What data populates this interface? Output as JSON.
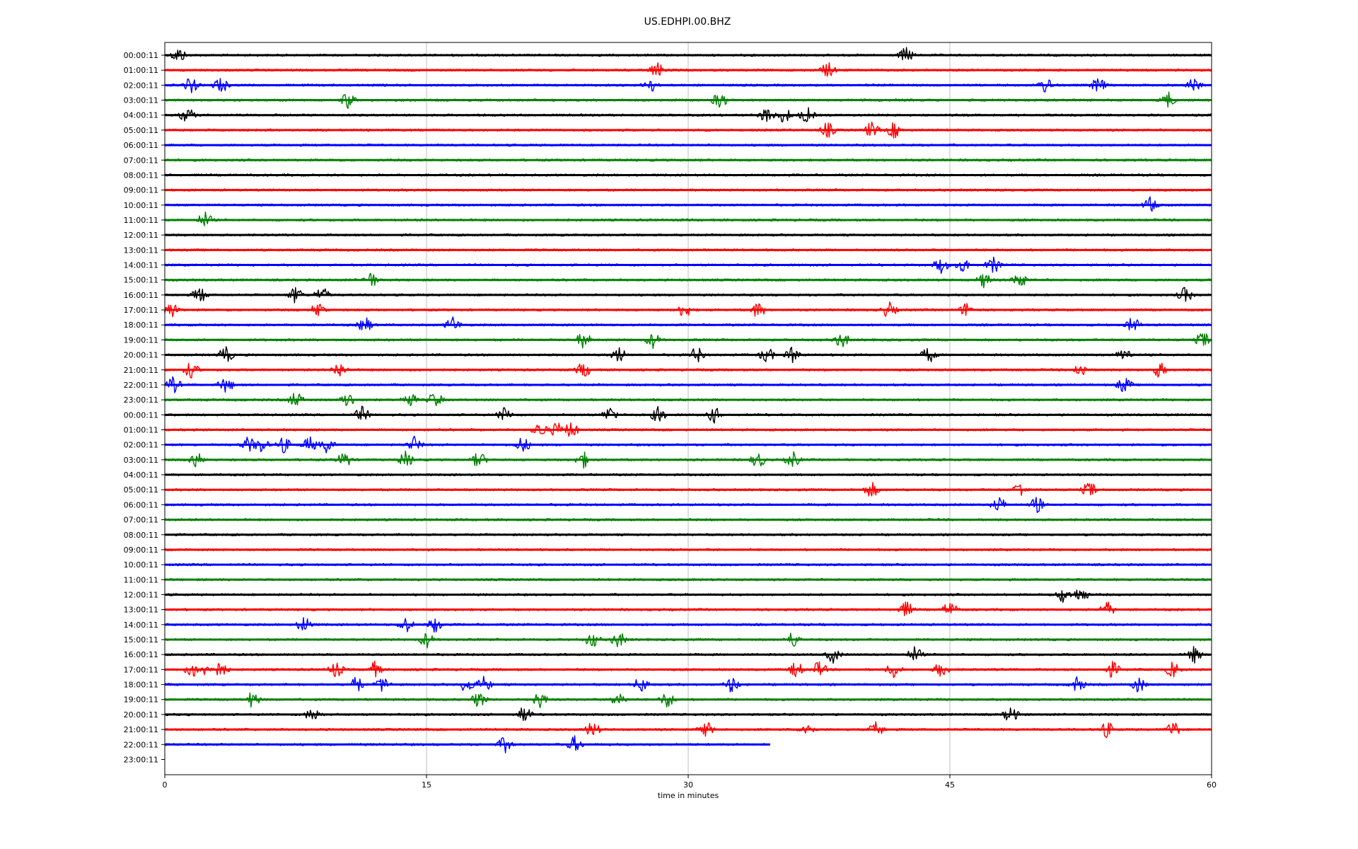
{
  "chart_data": {
    "type": "line",
    "title": "US.EDHPI.00.BHZ",
    "xlabel": "time in minutes",
    "ylabel": "",
    "xlim": [
      0,
      60
    ],
    "x_ticks": [
      0,
      15,
      30,
      45,
      60
    ],
    "grid_x": true,
    "color_cycle": [
      "#000000",
      "#ff0000",
      "#0000ff",
      "#008000"
    ],
    "rows": [
      {
        "label": "00:00:11",
        "start": 0,
        "end": 60,
        "events": [
          0.8,
          42.5
        ]
      },
      {
        "label": "01:00:11",
        "start": 0,
        "end": 60,
        "events": [
          28.2,
          38.0
        ]
      },
      {
        "label": "02:00:11",
        "start": 0,
        "end": 60,
        "events": [
          1.5,
          3.2,
          27.8,
          50.5,
          53.5,
          59.0
        ]
      },
      {
        "label": "03:00:11",
        "start": 0,
        "end": 60,
        "events": [
          10.5,
          31.8,
          57.5
        ]
      },
      {
        "label": "04:00:11",
        "start": 0,
        "end": 60,
        "events": [
          1.3,
          34.5,
          35.5,
          36.8
        ]
      },
      {
        "label": "05:00:11",
        "start": 0,
        "end": 60,
        "events": [
          38.0,
          40.5,
          41.8
        ]
      },
      {
        "label": "06:00:11",
        "start": 0,
        "end": 60,
        "events": []
      },
      {
        "label": "07:00:11",
        "start": 0,
        "end": 60,
        "events": []
      },
      {
        "label": "08:00:11",
        "start": 0,
        "end": 60,
        "events": []
      },
      {
        "label": "09:00:11",
        "start": 0,
        "end": 60,
        "events": []
      },
      {
        "label": "10:00:11",
        "start": 0,
        "end": 60,
        "events": [
          56.5
        ]
      },
      {
        "label": "11:00:11",
        "start": 0,
        "end": 60,
        "events": [
          2.3
        ]
      },
      {
        "label": "12:00:11",
        "start": 0,
        "end": 60,
        "events": []
      },
      {
        "label": "13:00:11",
        "start": 0,
        "end": 60,
        "events": []
      },
      {
        "label": "14:00:11",
        "start": 0,
        "end": 60,
        "events": [
          44.5,
          45.8,
          47.5
        ]
      },
      {
        "label": "15:00:11",
        "start": 0,
        "end": 60,
        "events": [
          11.8,
          47.0,
          49.0
        ]
      },
      {
        "label": "16:00:11",
        "start": 0,
        "end": 60,
        "events": [
          2.0,
          7.5,
          9.0,
          58.5
        ]
      },
      {
        "label": "17:00:11",
        "start": 0,
        "end": 60,
        "events": [
          0.4,
          8.8,
          29.8,
          34.0,
          41.5,
          46.0
        ]
      },
      {
        "label": "18:00:11",
        "start": 0,
        "end": 60,
        "events": [
          11.5,
          16.5,
          55.5
        ]
      },
      {
        "label": "19:00:11",
        "start": 0,
        "end": 60,
        "events": [
          24.0,
          28.0,
          38.8,
          59.5
        ]
      },
      {
        "label": "20:00:11",
        "start": 0,
        "end": 60,
        "events": [
          3.5,
          26.0,
          30.5,
          34.5,
          36.0,
          43.8,
          55.0
        ]
      },
      {
        "label": "21:00:11",
        "start": 0,
        "end": 60,
        "events": [
          1.5,
          10.0,
          24.0,
          52.5,
          57.0
        ]
      },
      {
        "label": "22:00:11",
        "start": 0,
        "end": 60,
        "events": [
          0.5,
          3.5,
          55.0
        ]
      },
      {
        "label": "23:00:11",
        "start": 0,
        "end": 60,
        "events": [
          7.5,
          10.5,
          14.0,
          15.5
        ]
      },
      {
        "label": "00:00:11",
        "start": 0,
        "end": 60,
        "events": [
          11.3,
          19.5,
          25.5,
          28.3,
          31.5
        ]
      },
      {
        "label": "01:00:11",
        "start": 0,
        "end": 60,
        "events": [
          21.5,
          22.5,
          23.3
        ]
      },
      {
        "label": "02:00:11",
        "start": 0,
        "end": 60,
        "events": [
          4.8,
          5.5,
          6.8,
          8.3,
          9.3,
          14.3,
          20.5
        ]
      },
      {
        "label": "03:00:11",
        "start": 0,
        "end": 60,
        "events": [
          1.8,
          10.3,
          13.8,
          18.0,
          24.0,
          34.0,
          36.0
        ]
      },
      {
        "label": "04:00:11",
        "start": 0,
        "end": 60,
        "events": []
      },
      {
        "label": "05:00:11",
        "start": 0,
        "end": 60,
        "events": [
          40.5,
          49.0,
          53.0
        ]
      },
      {
        "label": "06:00:11",
        "start": 0,
        "end": 60,
        "events": [
          47.8,
          50.0
        ]
      },
      {
        "label": "07:00:11",
        "start": 0,
        "end": 60,
        "events": []
      },
      {
        "label": "08:00:11",
        "start": 0,
        "end": 60,
        "events": []
      },
      {
        "label": "09:00:11",
        "start": 0,
        "end": 60,
        "events": []
      },
      {
        "label": "10:00:11",
        "start": 0,
        "end": 60,
        "events": []
      },
      {
        "label": "11:00:11",
        "start": 0,
        "end": 60,
        "events": []
      },
      {
        "label": "12:00:11",
        "start": 0,
        "end": 60,
        "events": [
          51.5,
          52.5
        ]
      },
      {
        "label": "13:00:11",
        "start": 0,
        "end": 60,
        "events": [
          42.5,
          45.0,
          54.0
        ]
      },
      {
        "label": "14:00:11",
        "start": 0,
        "end": 60,
        "events": [
          8.0,
          13.8,
          15.5
        ]
      },
      {
        "label": "15:00:11",
        "start": 0,
        "end": 60,
        "events": [
          15.0,
          24.5,
          26.0,
          36.0
        ]
      },
      {
        "label": "16:00:11",
        "start": 0,
        "end": 60,
        "events": [
          38.3,
          43.0,
          59.0
        ]
      },
      {
        "label": "17:00:11",
        "start": 0,
        "end": 60,
        "events": [
          1.6,
          2.5,
          3.2,
          9.8,
          12.0,
          36.2,
          37.5,
          41.8,
          44.5,
          54.3,
          57.8
        ]
      },
      {
        "label": "18:00:11",
        "start": 0,
        "end": 60,
        "events": [
          11.0,
          12.5,
          17.3,
          18.3,
          27.3,
          32.5,
          52.3,
          55.8
        ]
      },
      {
        "label": "19:00:11",
        "start": 0,
        "end": 60,
        "events": [
          5.0,
          18.0,
          21.5,
          26.0,
          28.8
        ]
      },
      {
        "label": "20:00:11",
        "start": 0,
        "end": 60,
        "events": [
          8.5,
          20.6,
          48.5
        ]
      },
      {
        "label": "21:00:11",
        "start": 0,
        "end": 60,
        "events": [
          24.5,
          31.0,
          36.8,
          40.8,
          54.0,
          57.8
        ]
      },
      {
        "label": "22:00:11",
        "start": 0,
        "end": 34.7,
        "events": [
          19.5,
          23.5
        ]
      },
      {
        "label": "23:00:11",
        "start": 0,
        "end": 0,
        "events": []
      }
    ]
  }
}
